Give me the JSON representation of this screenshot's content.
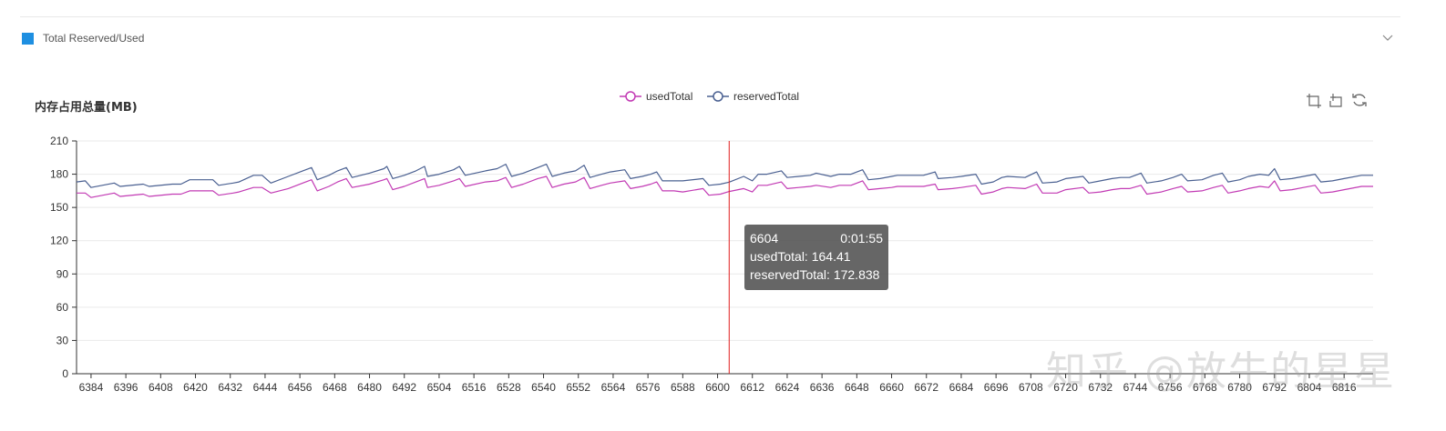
{
  "panel": {
    "title": "Total Reserved/Used",
    "swatch_color": "#1e8fe1",
    "collapse_icon": "chevron-down-icon"
  },
  "toolbox": {
    "icons": [
      "zoom-select-icon",
      "zoom-reset-icon",
      "restore-icon"
    ]
  },
  "tooltip": {
    "x_value": "6604",
    "time": "0:01:55",
    "used_line": "usedTotal: 164.41",
    "reserved_line": "reservedTotal: 172.838"
  },
  "watermark": "知乎 @放牛的星星",
  "chart_data": {
    "type": "line",
    "ylabel": "内存占用总量(MB)",
    "ylim": [
      0,
      210
    ],
    "yticks": [
      0,
      30,
      60,
      90,
      120,
      150,
      180,
      210
    ],
    "xlim": [
      6379,
      6826
    ],
    "xticks": [
      6384,
      6396,
      6408,
      6420,
      6432,
      6444,
      6456,
      6468,
      6480,
      6492,
      6504,
      6516,
      6528,
      6540,
      6552,
      6564,
      6576,
      6588,
      6600,
      6612,
      6624,
      6636,
      6648,
      6660,
      6672,
      6684,
      6696,
      6708,
      6720,
      6732,
      6744,
      6756,
      6768,
      6780,
      6792,
      6804,
      6816
    ],
    "grid": "horizontal",
    "legend_position": "top-center",
    "cursor_x": 6604,
    "series": [
      {
        "name": "usedTotal",
        "color": "#c23ab4",
        "points": [
          [
            6379,
            163
          ],
          [
            6382,
            163
          ],
          [
            6384,
            159
          ],
          [
            6392,
            163
          ],
          [
            6394,
            160
          ],
          [
            6402,
            162
          ],
          [
            6404,
            160
          ],
          [
            6412,
            162
          ],
          [
            6415,
            162
          ],
          [
            6418,
            165
          ],
          [
            6423,
            165
          ],
          [
            6426,
            165
          ],
          [
            6428,
            161
          ],
          [
            6433,
            163
          ],
          [
            6435,
            164
          ],
          [
            6440,
            168
          ],
          [
            6443,
            168
          ],
          [
            6446,
            163
          ],
          [
            6452,
            167
          ],
          [
            6457,
            172
          ],
          [
            6460,
            175
          ],
          [
            6462,
            165
          ],
          [
            6466,
            169
          ],
          [
            6469,
            173
          ],
          [
            6472,
            176
          ],
          [
            6474,
            168
          ],
          [
            6480,
            171
          ],
          [
            6485,
            175
          ],
          [
            6486,
            176
          ],
          [
            6488,
            166
          ],
          [
            6492,
            169
          ],
          [
            6496,
            173
          ],
          [
            6499,
            176
          ],
          [
            6500,
            168
          ],
          [
            6504,
            170
          ],
          [
            6509,
            174
          ],
          [
            6511,
            176
          ],
          [
            6513,
            169
          ],
          [
            6520,
            173
          ],
          [
            6524,
            174
          ],
          [
            6527,
            177
          ],
          [
            6529,
            168
          ],
          [
            6533,
            171
          ],
          [
            6538,
            176
          ],
          [
            6541,
            178
          ],
          [
            6543,
            168
          ],
          [
            6547,
            171
          ],
          [
            6551,
            173
          ],
          [
            6554,
            177
          ],
          [
            6556,
            167
          ],
          [
            6560,
            170
          ],
          [
            6563,
            172
          ],
          [
            6568,
            174
          ],
          [
            6570,
            167
          ],
          [
            6574,
            169
          ],
          [
            6577,
            171
          ],
          [
            6579,
            173
          ],
          [
            6581,
            165
          ],
          [
            6585,
            165
          ],
          [
            6588,
            164
          ],
          [
            6595,
            167
          ],
          [
            6597,
            161
          ],
          [
            6601,
            162
          ],
          [
            6604,
            164.41
          ],
          [
            6609,
            167
          ],
          [
            6612,
            164
          ],
          [
            6614,
            170
          ],
          [
            6617,
            170
          ],
          [
            6622,
            173
          ],
          [
            6624,
            167
          ],
          [
            6628,
            168
          ],
          [
            6632,
            169
          ],
          [
            6634,
            170
          ],
          [
            6639,
            168
          ],
          [
            6642,
            170
          ],
          [
            6646,
            170
          ],
          [
            6650,
            174
          ],
          [
            6652,
            166
          ],
          [
            6656,
            167
          ],
          [
            6660,
            168
          ],
          [
            6662,
            169
          ],
          [
            6671,
            169
          ],
          [
            6675,
            171
          ],
          [
            6676,
            166
          ],
          [
            6681,
            167
          ],
          [
            6684,
            168
          ],
          [
            6689,
            170
          ],
          [
            6691,
            162
          ],
          [
            6695,
            164
          ],
          [
            6698,
            167
          ],
          [
            6700,
            168
          ],
          [
            6706,
            167
          ],
          [
            6710,
            171
          ],
          [
            6712,
            163
          ],
          [
            6717,
            163
          ],
          [
            6720,
            166
          ],
          [
            6726,
            168
          ],
          [
            6728,
            163
          ],
          [
            6732,
            164
          ],
          [
            6736,
            166
          ],
          [
            6739,
            167
          ],
          [
            6742,
            167
          ],
          [
            6746,
            170
          ],
          [
            6748,
            162
          ],
          [
            6753,
            164
          ],
          [
            6757,
            167
          ],
          [
            6760,
            169
          ],
          [
            6762,
            164
          ],
          [
            6767,
            165
          ],
          [
            6771,
            168
          ],
          [
            6774,
            170
          ],
          [
            6776,
            163
          ],
          [
            6780,
            165
          ],
          [
            6783,
            167
          ],
          [
            6787,
            169
          ],
          [
            6790,
            168
          ],
          [
            6792,
            174
          ],
          [
            6794,
            165
          ],
          [
            6798,
            166
          ],
          [
            6802,
            168
          ],
          [
            6806,
            170
          ],
          [
            6808,
            163
          ],
          [
            6812,
            164
          ],
          [
            6816,
            166
          ],
          [
            6822,
            169
          ],
          [
            6826,
            169
          ]
        ]
      },
      {
        "name": "reservedTotal",
        "color": "#4a6091",
        "points": [
          [
            6379,
            173
          ],
          [
            6382,
            174
          ],
          [
            6384,
            168
          ],
          [
            6392,
            172
          ],
          [
            6394,
            169
          ],
          [
            6402,
            171
          ],
          [
            6404,
            169
          ],
          [
            6412,
            171
          ],
          [
            6415,
            171
          ],
          [
            6418,
            175
          ],
          [
            6423,
            175
          ],
          [
            6426,
            175
          ],
          [
            6428,
            170
          ],
          [
            6433,
            172
          ],
          [
            6435,
            173
          ],
          [
            6440,
            179
          ],
          [
            6443,
            179
          ],
          [
            6446,
            172
          ],
          [
            6452,
            178
          ],
          [
            6457,
            183
          ],
          [
            6460,
            186
          ],
          [
            6462,
            175
          ],
          [
            6466,
            179
          ],
          [
            6469,
            183
          ],
          [
            6472,
            186
          ],
          [
            6474,
            177
          ],
          [
            6480,
            181
          ],
          [
            6485,
            185
          ],
          [
            6486,
            187
          ],
          [
            6488,
            176
          ],
          [
            6492,
            179
          ],
          [
            6496,
            183
          ],
          [
            6499,
            187
          ],
          [
            6500,
            178
          ],
          [
            6504,
            180
          ],
          [
            6509,
            184
          ],
          [
            6511,
            187
          ],
          [
            6513,
            179
          ],
          [
            6520,
            183
          ],
          [
            6524,
            185
          ],
          [
            6527,
            189
          ],
          [
            6529,
            178
          ],
          [
            6533,
            181
          ],
          [
            6538,
            186
          ],
          [
            6541,
            189
          ],
          [
            6543,
            178
          ],
          [
            6547,
            181
          ],
          [
            6551,
            183
          ],
          [
            6554,
            188
          ],
          [
            6556,
            177
          ],
          [
            6560,
            180
          ],
          [
            6563,
            182
          ],
          [
            6568,
            184
          ],
          [
            6570,
            176
          ],
          [
            6574,
            178
          ],
          [
            6577,
            180
          ],
          [
            6579,
            182
          ],
          [
            6581,
            174
          ],
          [
            6585,
            174
          ],
          [
            6588,
            174
          ],
          [
            6595,
            176
          ],
          [
            6597,
            170
          ],
          [
            6601,
            171
          ],
          [
            6604,
            172.838
          ],
          [
            6609,
            178
          ],
          [
            6612,
            174
          ],
          [
            6614,
            180
          ],
          [
            6617,
            180
          ],
          [
            6622,
            183
          ],
          [
            6624,
            177
          ],
          [
            6628,
            178
          ],
          [
            6632,
            179
          ],
          [
            6634,
            181
          ],
          [
            6639,
            178
          ],
          [
            6642,
            180
          ],
          [
            6646,
            180
          ],
          [
            6650,
            184
          ],
          [
            6652,
            175
          ],
          [
            6656,
            176
          ],
          [
            6660,
            178
          ],
          [
            6662,
            179
          ],
          [
            6671,
            179
          ],
          [
            6675,
            182
          ],
          [
            6676,
            176
          ],
          [
            6681,
            177
          ],
          [
            6684,
            178
          ],
          [
            6689,
            180
          ],
          [
            6691,
            171
          ],
          [
            6695,
            173
          ],
          [
            6698,
            177
          ],
          [
            6700,
            178
          ],
          [
            6706,
            177
          ],
          [
            6710,
            182
          ],
          [
            6712,
            172
          ],
          [
            6717,
            173
          ],
          [
            6720,
            176
          ],
          [
            6726,
            178
          ],
          [
            6728,
            172
          ],
          [
            6732,
            174
          ],
          [
            6736,
            176
          ],
          [
            6739,
            177
          ],
          [
            6742,
            177
          ],
          [
            6746,
            181
          ],
          [
            6748,
            172
          ],
          [
            6753,
            174
          ],
          [
            6757,
            177
          ],
          [
            6760,
            180
          ],
          [
            6762,
            174
          ],
          [
            6767,
            175
          ],
          [
            6771,
            179
          ],
          [
            6774,
            181
          ],
          [
            6776,
            173
          ],
          [
            6780,
            175
          ],
          [
            6783,
            178
          ],
          [
            6787,
            180
          ],
          [
            6790,
            179
          ],
          [
            6792,
            185
          ],
          [
            6794,
            175
          ],
          [
            6798,
            176
          ],
          [
            6802,
            178
          ],
          [
            6806,
            180
          ],
          [
            6808,
            173
          ],
          [
            6812,
            174
          ],
          [
            6816,
            176
          ],
          [
            6822,
            179
          ],
          [
            6826,
            179
          ]
        ]
      }
    ]
  }
}
